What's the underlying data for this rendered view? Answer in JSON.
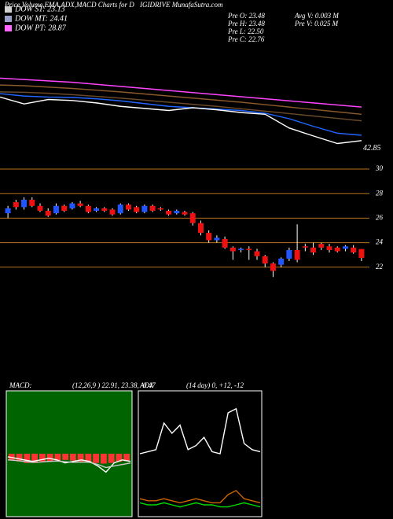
{
  "header": {
    "title_left": "Price,Volume,EMA,ADX,MACD Charts for D",
    "title_right": "IGIDRIVE MunafaSutra.com",
    "legend": [
      {
        "label": "DOW ST: 23.13",
        "color": "#d0d0d0"
      },
      {
        "label": "DOW MT: 24.41",
        "color": "#9aa0c8"
      },
      {
        "label": "DOW PT: 28.87",
        "color": "#ff66ff"
      }
    ],
    "stats": [
      "Pre  O: 23.48",
      "Pre  H: 23.48",
      "Pre  L: 22.50",
      "Pre  C: 22.76"
    ],
    "volume": [
      "Avg V: 0.003 M",
      "Pre  V: 0.025 M"
    ]
  },
  "chart_data": [
    {
      "type": "line",
      "annotation": "42.85",
      "ylim": [
        38,
        62
      ],
      "series": [
        {
          "color": "#ff44ff",
          "values": [
            61,
            60.6,
            60.2,
            59.8,
            59.2,
            58.6,
            58,
            57.4,
            56.8,
            56.2,
            55.6,
            55,
            54.4,
            53.8,
            53.2,
            52.6
          ]
        },
        {
          "color": "#8a5a2a",
          "values": [
            59,
            58.8,
            58.4,
            58,
            57.5,
            57,
            56.4,
            55.8,
            55.2,
            54.6,
            54,
            53.3,
            52.6,
            51.9,
            51.2,
            50.5
          ]
        },
        {
          "color": "#6a4a2a",
          "values": [
            57,
            56.9,
            56.6,
            56.2,
            55.7,
            55.2,
            54.6,
            54,
            53.4,
            52.8,
            52.1,
            51.4,
            50.7,
            50,
            49.3,
            48.6
          ]
        },
        {
          "color": "#2266ff",
          "values": [
            56.5,
            55.8,
            55.5,
            55.4,
            55,
            54.4,
            53.6,
            52.8,
            52.4,
            52,
            51.6,
            50.8,
            49.2,
            47,
            45,
            44.4
          ]
        },
        {
          "color": "#ffffff",
          "values": [
            55.5,
            53.5,
            54.8,
            54.5,
            53.8,
            52.8,
            52.2,
            51.6,
            52.4,
            51.8,
            51,
            50.5,
            46.5,
            44.2,
            42,
            42.85
          ]
        }
      ]
    },
    {
      "type": "candlestick",
      "ylim": [
        20,
        30
      ],
      "yticks": [
        30,
        28,
        26,
        24,
        22
      ],
      "grid": true,
      "up_color": "#2255ff",
      "down_color": "#ee1111",
      "open": [
        26.4,
        27.3,
        26.9,
        27.5,
        27.0,
        26.6,
        26.4,
        27.0,
        26.8,
        27.2,
        27.0,
        26.6,
        26.8,
        26.7,
        26.4,
        27.1,
        26.9,
        26.5,
        27.0,
        26.8,
        26.6,
        26.4,
        26.5,
        26.4,
        25.6,
        24.8,
        24.2,
        24.3,
        23.6,
        23.4,
        23.5,
        23.3,
        22.9,
        22.3,
        22.2,
        22.7,
        23.4,
        23.7,
        23.6,
        23.9,
        23.7,
        23.6,
        23.5,
        23.6,
        23.48
      ],
      "high": [
        27.0,
        27.5,
        27.7,
        27.7,
        27.2,
        26.8,
        27.2,
        27.1,
        27.3,
        27.4,
        27.1,
        26.9,
        26.9,
        26.8,
        27.2,
        27.2,
        27.0,
        27.1,
        27.1,
        26.9,
        26.7,
        26.7,
        26.6,
        26.5,
        25.8,
        25.0,
        24.6,
        24.5,
        23.7,
        23.6,
        23.7,
        23.5,
        23.0,
        22.4,
        22.8,
        23.6,
        25.5,
        23.9,
        24.0,
        24.0,
        23.9,
        23.7,
        23.8,
        23.8,
        23.48
      ],
      "low": [
        26.0,
        26.7,
        26.7,
        26.9,
        26.5,
        26.1,
        26.3,
        26.5,
        26.7,
        26.9,
        26.4,
        26.5,
        26.5,
        26.2,
        26.3,
        26.6,
        26.4,
        26.4,
        26.5,
        26.6,
        26.2,
        26.3,
        26.2,
        25.4,
        24.6,
        24.0,
        24.0,
        23.5,
        22.6,
        23.2,
        22.6,
        22.6,
        22.0,
        21.2,
        22.0,
        22.5,
        22.4,
        23.3,
        23.0,
        23.4,
        23.2,
        23.2,
        23.3,
        23.1,
        22.5
      ],
      "close": [
        26.8,
        26.9,
        27.5,
        27.0,
        26.6,
        26.2,
        27.0,
        26.6,
        27.2,
        27.0,
        26.5,
        26.8,
        26.6,
        26.3,
        27.1,
        26.7,
        26.5,
        27.0,
        26.6,
        26.7,
        26.3,
        26.6,
        26.3,
        25.6,
        24.8,
        24.2,
        24.4,
        23.6,
        23.3,
        23.5,
        23.4,
        22.9,
        22.3,
        21.7,
        22.7,
        23.4,
        22.6,
        23.6,
        23.2,
        23.6,
        23.4,
        23.3,
        23.7,
        23.2,
        22.76
      ]
    },
    {
      "type": "macd",
      "title": "MACD:",
      "subtitle": "(12,26,9 ) 22.91, 23.38, -0.47",
      "ylim": [
        -2,
        2
      ],
      "histogram": {
        "color": "#ff3333",
        "values": [
          -0.2,
          -0.25,
          -0.3,
          -0.3,
          -0.28,
          -0.25,
          -0.22,
          -0.2,
          -0.22,
          -0.25,
          -0.28,
          -0.3,
          -0.32,
          -0.3,
          -0.26,
          -0.24
        ]
      },
      "series": [
        {
          "color": "#ffffff",
          "values": [
            -0.1,
            -0.15,
            -0.2,
            -0.25,
            -0.2,
            -0.15,
            -0.2,
            -0.3,
            -0.25,
            -0.2,
            -0.25,
            -0.4,
            -0.6,
            -0.3,
            -0.2,
            -0.25
          ]
        },
        {
          "color": "#cccccc",
          "values": [
            -0.2,
            -0.22,
            -0.25,
            -0.28,
            -0.27,
            -0.25,
            -0.24,
            -0.26,
            -0.28,
            -0.27,
            -0.28,
            -0.35,
            -0.45,
            -0.4,
            -0.35,
            -0.3
          ]
        }
      ]
    },
    {
      "type": "adx",
      "title": "ADX",
      "subtitle": "(14 day) 0, +12, -12",
      "ylim": [
        0,
        60
      ],
      "series": [
        {
          "color": "#ffffff",
          "values": [
            30,
            31,
            32,
            45,
            40,
            44,
            32,
            34,
            38,
            31,
            30,
            50,
            52,
            35,
            32,
            31
          ]
        },
        {
          "color": "#00dd00",
          "values": [
            6,
            5,
            5,
            6,
            5,
            4,
            5,
            6,
            5,
            5,
            4,
            4,
            5,
            6,
            5,
            4
          ]
        },
        {
          "color": "#cc6600",
          "values": [
            8,
            7,
            7,
            8,
            7,
            6,
            7,
            8,
            7,
            6,
            6,
            10,
            12,
            8,
            7,
            6
          ]
        }
      ]
    }
  ]
}
